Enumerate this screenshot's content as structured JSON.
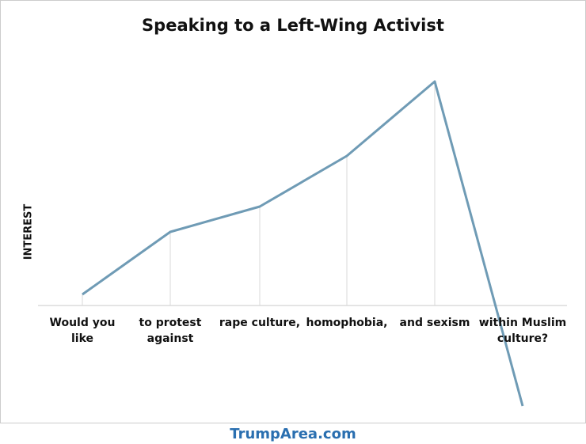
{
  "chart_data": {
    "type": "line",
    "title": "Speaking to a Left-Wing Activist",
    "y_label": "INTEREST",
    "categories": [
      "Would you like",
      "to protest against",
      "rape culture,",
      "homophobia,",
      "and sexism",
      "within Muslim culture?"
    ],
    "series": [
      {
        "name": null,
        "color": "#6f9bb5",
        "values": [
          14,
          93,
          125,
          189,
          283,
          -127
        ]
      }
    ],
    "ylim": [
      -130,
      300
    ]
  },
  "footer": {
    "text": "TrumpArea.com"
  }
}
